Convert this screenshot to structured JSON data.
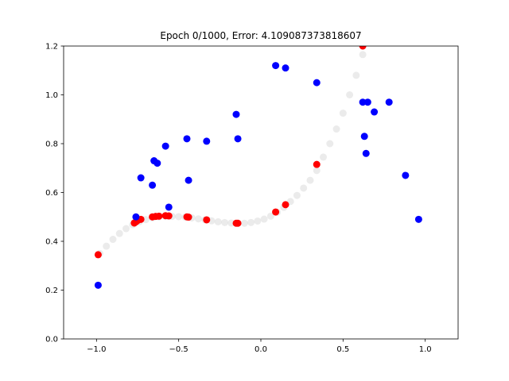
{
  "chart_data": {
    "type": "scatter",
    "title": "Epoch 0/1000, Error: 4.109087373818607",
    "xlim": [
      -1.2,
      1.2
    ],
    "ylim": [
      0.0,
      1.2
    ],
    "xticks": [
      -1.0,
      -0.5,
      0.0,
      0.5,
      1.0
    ],
    "xtick_labels": [
      "−1.0",
      "−0.5",
      "0.0",
      "0.5",
      "1.0"
    ],
    "yticks": [
      0.0,
      0.2,
      0.4,
      0.6,
      0.8,
      1.0,
      1.2
    ],
    "ytick_labels": [
      "0.0",
      "0.2",
      "0.4",
      "0.6",
      "0.8",
      "1.0",
      "1.2"
    ],
    "grid": false,
    "colors": {
      "data": "#0000ff",
      "prediction": "#ff0000",
      "curve": "#d3d3d3"
    },
    "series": [
      {
        "points": [
          [
            -0.99,
            0.22
          ],
          [
            -0.76,
            0.5
          ],
          [
            -0.73,
            0.66
          ],
          [
            -0.66,
            0.63
          ],
          [
            -0.65,
            0.73
          ],
          [
            -0.63,
            0.72
          ],
          [
            -0.58,
            0.79
          ],
          [
            -0.56,
            0.54
          ],
          [
            -0.45,
            0.82
          ],
          [
            -0.44,
            0.65
          ],
          [
            -0.33,
            0.81
          ],
          [
            -0.15,
            0.92
          ],
          [
            -0.14,
            0.82
          ],
          [
            0.09,
            1.12
          ],
          [
            0.15,
            1.11
          ],
          [
            0.34,
            1.05
          ],
          [
            0.62,
            0.97
          ],
          [
            0.63,
            0.83
          ],
          [
            0.64,
            0.76
          ],
          [
            0.65,
            0.97
          ],
          [
            0.69,
            0.93
          ],
          [
            0.78,
            0.97
          ],
          [
            0.88,
            0.67
          ],
          [
            0.96,
            0.49
          ]
        ]
      },
      {
        "points": [
          [
            -0.99,
            0.345
          ],
          [
            -0.77,
            0.475
          ],
          [
            -0.76,
            0.48
          ],
          [
            -0.75,
            0.485
          ],
          [
            -0.73,
            0.49
          ],
          [
            -0.66,
            0.5
          ],
          [
            -0.64,
            0.502
          ],
          [
            -0.62,
            0.503
          ],
          [
            -0.58,
            0.505
          ],
          [
            -0.56,
            0.504
          ],
          [
            -0.45,
            0.5
          ],
          [
            -0.44,
            0.499
          ],
          [
            -0.33,
            0.488
          ],
          [
            -0.15,
            0.474
          ],
          [
            -0.14,
            0.474
          ],
          [
            0.09,
            0.52
          ],
          [
            0.15,
            0.55
          ],
          [
            0.34,
            0.715
          ],
          [
            0.62,
            1.2
          ]
        ]
      },
      {
        "points": [
          [
            -0.98,
            0.35
          ],
          [
            -0.94,
            0.38
          ],
          [
            -0.9,
            0.408
          ],
          [
            -0.86,
            0.432
          ],
          [
            -0.82,
            0.452
          ],
          [
            -0.78,
            0.468
          ],
          [
            -0.74,
            0.48
          ],
          [
            -0.7,
            0.489
          ],
          [
            -0.66,
            0.496
          ],
          [
            -0.62,
            0.5
          ],
          [
            -0.58,
            0.502
          ],
          [
            -0.54,
            0.502
          ],
          [
            -0.5,
            0.501
          ],
          [
            -0.46,
            0.499
          ],
          [
            -0.42,
            0.496
          ],
          [
            -0.38,
            0.492
          ],
          [
            -0.34,
            0.488
          ],
          [
            -0.3,
            0.484
          ],
          [
            -0.26,
            0.48
          ],
          [
            -0.22,
            0.477
          ],
          [
            -0.18,
            0.475
          ],
          [
            -0.14,
            0.474
          ],
          [
            -0.1,
            0.474
          ],
          [
            -0.06,
            0.477
          ],
          [
            -0.02,
            0.483
          ],
          [
            0.02,
            0.491
          ],
          [
            0.06,
            0.503
          ],
          [
            0.1,
            0.519
          ],
          [
            0.14,
            0.539
          ],
          [
            0.18,
            0.563
          ],
          [
            0.22,
            0.588
          ],
          [
            0.26,
            0.618
          ],
          [
            0.3,
            0.65
          ],
          [
            0.34,
            0.69
          ],
          [
            0.38,
            0.745
          ],
          [
            0.42,
            0.8
          ],
          [
            0.46,
            0.86
          ],
          [
            0.5,
            0.925
          ],
          [
            0.54,
            1.0
          ],
          [
            0.58,
            1.08
          ],
          [
            0.62,
            1.165
          ]
        ]
      }
    ]
  }
}
